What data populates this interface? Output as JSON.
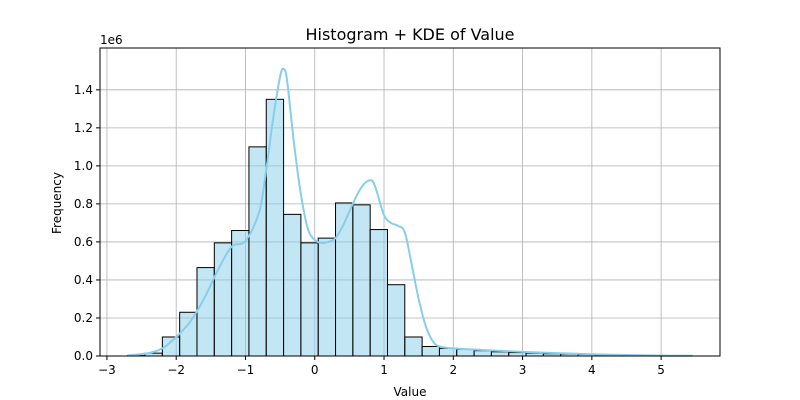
{
  "chart_data": {
    "type": "bar",
    "title": "Histogram + KDE of Value",
    "xlabel": "Value",
    "ylabel": "Frequency",
    "y_offset_label": "1e6",
    "xlim": [
      -3.1,
      5.85
    ],
    "ylim": [
      0,
      1.62
    ],
    "x_ticks": [
      -3,
      -2,
      -1,
      0,
      1,
      2,
      3,
      4,
      5
    ],
    "y_ticks": [
      0.0,
      0.2,
      0.4,
      0.6,
      0.8,
      1.0,
      1.2,
      1.4
    ],
    "y_tick_labels": [
      "0.0",
      "0.2",
      "0.4",
      "0.6",
      "0.8",
      "1.0",
      "1.2",
      "1.4"
    ],
    "grid": true,
    "histogram": {
      "bin_edges": [
        -2.7,
        -2.45,
        -2.2,
        -1.95,
        -1.7,
        -1.45,
        -1.2,
        -0.95,
        -0.7,
        -0.45,
        -0.2,
        0.05,
        0.3,
        0.55,
        0.8,
        1.05,
        1.3,
        1.55,
        1.8,
        2.05,
        2.3,
        2.55,
        2.8,
        3.05,
        3.3,
        3.55,
        3.8,
        4.05,
        4.3,
        4.55,
        4.8,
        5.05,
        5.3,
        5.45
      ],
      "counts_millions": [
        0.002,
        0.015,
        0.1,
        0.23,
        0.465,
        0.595,
        0.66,
        1.1,
        1.35,
        0.745,
        0.595,
        0.62,
        0.805,
        0.795,
        0.665,
        0.375,
        0.1,
        0.05,
        0.04,
        0.035,
        0.028,
        0.022,
        0.018,
        0.015,
        0.012,
        0.01,
        0.008,
        0.006,
        0.005,
        0.004,
        0.003,
        0.002,
        0.001
      ]
    },
    "kde": {
      "x": [
        -2.7,
        -2.4,
        -2.2,
        -2.0,
        -1.8,
        -1.6,
        -1.4,
        -1.2,
        -1.0,
        -0.8,
        -0.7,
        -0.6,
        -0.5,
        -0.45,
        -0.4,
        -0.3,
        -0.2,
        -0.1,
        0.0,
        0.1,
        0.2,
        0.3,
        0.4,
        0.5,
        0.6,
        0.7,
        0.8,
        0.85,
        0.9,
        1.0,
        1.1,
        1.2,
        1.3,
        1.4,
        1.5,
        1.6,
        1.7,
        1.8,
        2.0,
        2.5,
        3.0,
        3.5,
        4.0,
        4.5,
        5.0,
        5.45
      ],
      "y_millions": [
        0.003,
        0.015,
        0.04,
        0.1,
        0.18,
        0.3,
        0.45,
        0.575,
        0.605,
        0.76,
        0.98,
        1.25,
        1.47,
        1.51,
        1.45,
        1.12,
        0.85,
        0.67,
        0.61,
        0.595,
        0.6,
        0.62,
        0.68,
        0.76,
        0.84,
        0.9,
        0.925,
        0.91,
        0.86,
        0.74,
        0.7,
        0.685,
        0.65,
        0.48,
        0.3,
        0.16,
        0.08,
        0.05,
        0.04,
        0.03,
        0.022,
        0.015,
        0.009,
        0.005,
        0.002,
        0.001
      ]
    },
    "colors": {
      "bar_fill": "#87ceeb",
      "bar_fill_opacity": 0.5,
      "bar_edge": "#000000",
      "kde_line": "#87ceeb",
      "grid": "#b0b0b0",
      "axes": "#000000"
    }
  }
}
